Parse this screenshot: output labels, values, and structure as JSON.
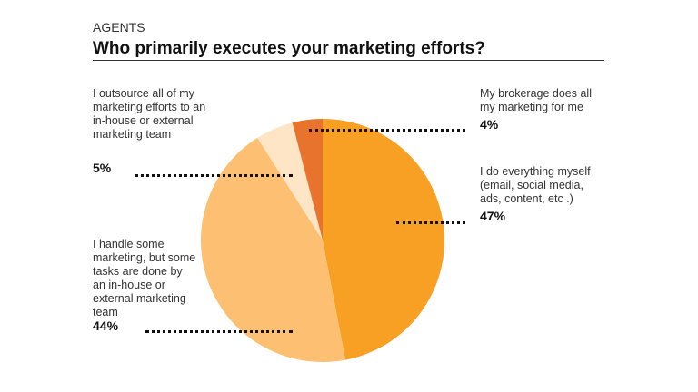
{
  "header": {
    "supertitle": "AGENTS",
    "title": "Who primarily executes your marketing efforts?"
  },
  "chart_data": {
    "type": "pie",
    "title": "Who primarily executes your marketing efforts?",
    "slices": [
      {
        "label": "I do everything myself (email, social media, ads, content, etc .)",
        "value": 47,
        "display": "47%",
        "color": "#F7A024"
      },
      {
        "label": "I handle some marketing, but some tasks are done by an in-house or external marketing team",
        "value": 44,
        "display": "44%",
        "color": "#FDBF72"
      },
      {
        "label": "I outsource all of my marketing efforts to an in-house or external marketing team",
        "value": 5,
        "display": "5%",
        "color": "#FDE5C6"
      },
      {
        "label": "My brokerage does all my marketing for me",
        "value": 4,
        "display": "4%",
        "color": "#E8732C"
      }
    ]
  }
}
